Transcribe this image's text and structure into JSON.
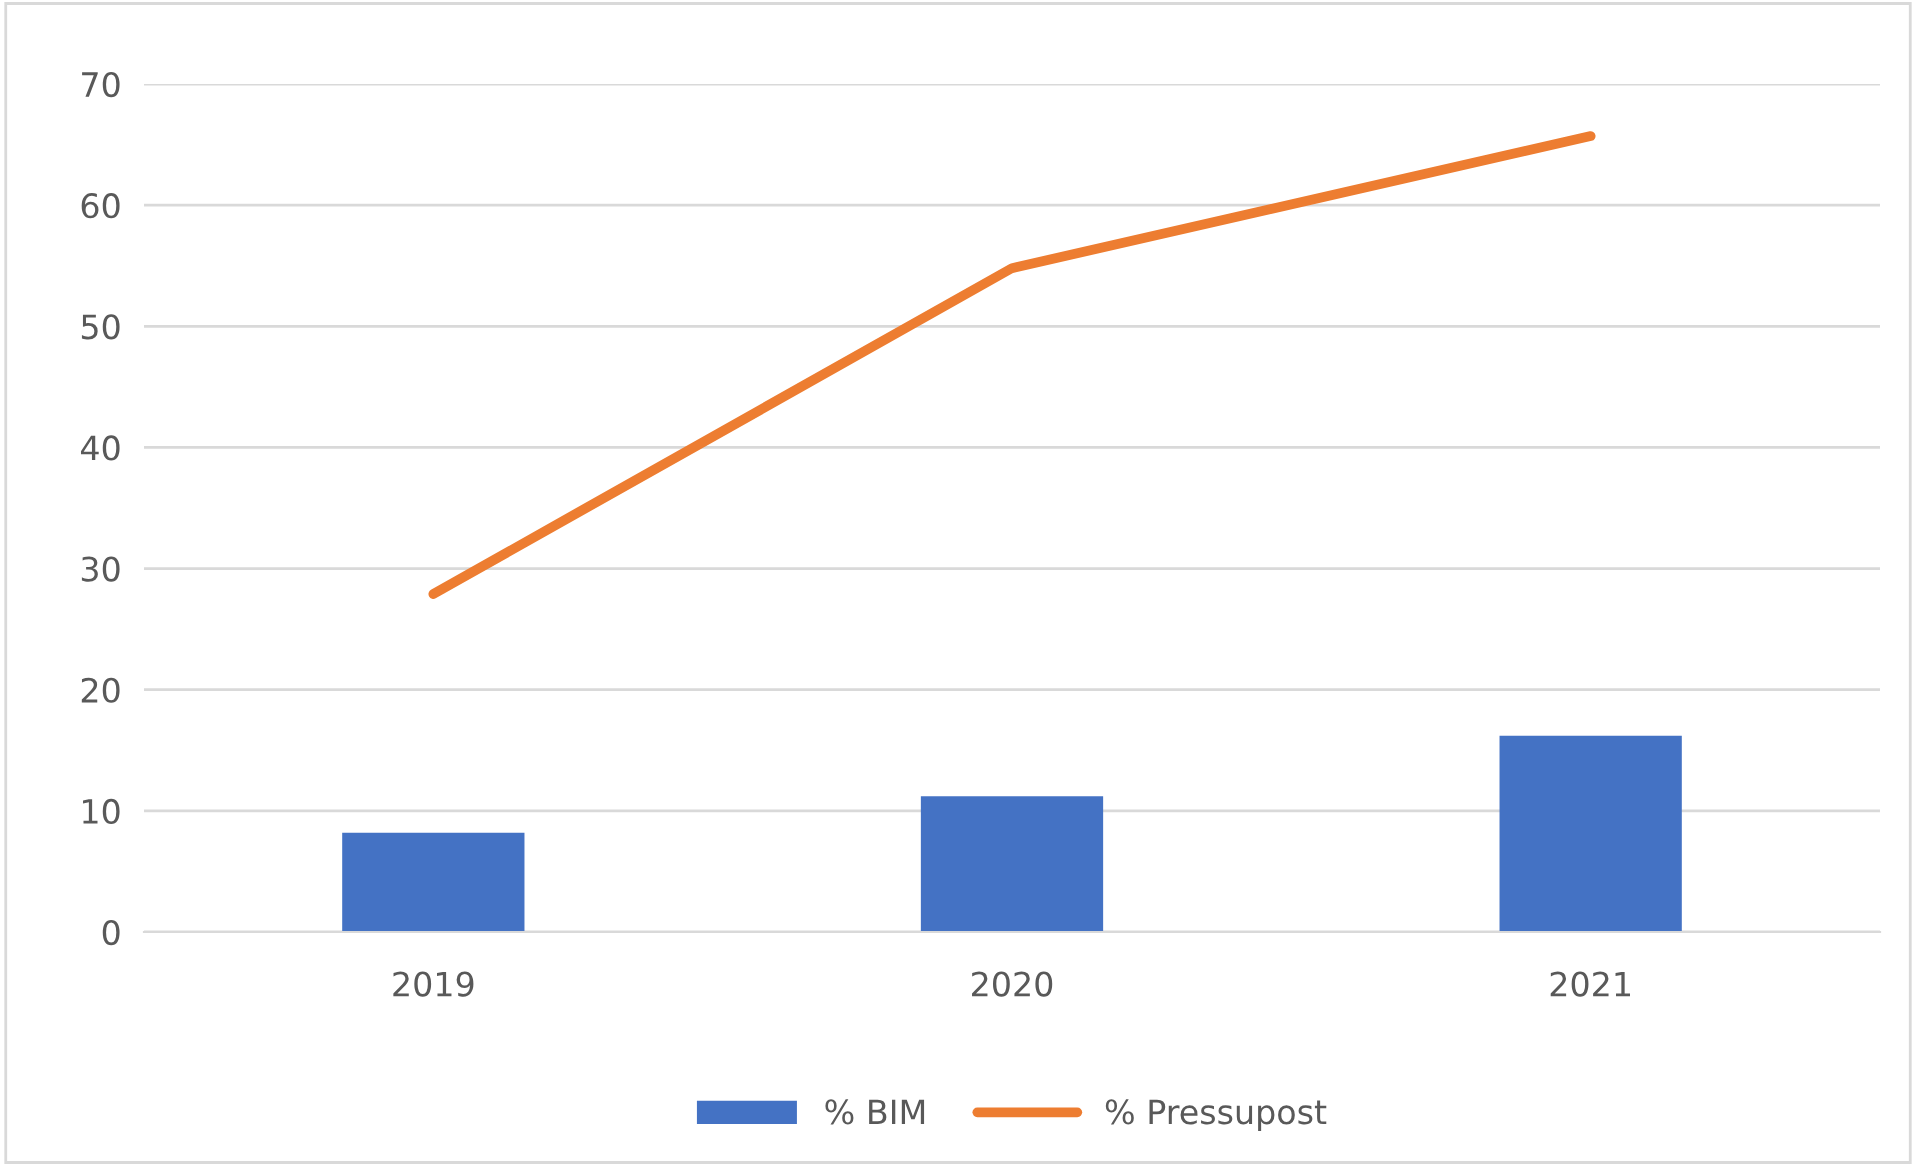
{
  "chart_data": {
    "type": "bar",
    "categories": [
      "2019",
      "2020",
      "2021"
    ],
    "series": [
      {
        "name": "% BIM",
        "color": "#4472c4",
        "values": [
          8.2,
          11.2,
          16.2
        ]
      },
      {
        "name": "% Pressupost",
        "type": "line",
        "color": "#ed7d31",
        "values": [
          27.9,
          54.8,
          65.7
        ]
      }
    ],
    "ylim": [
      0,
      70
    ],
    "yticks": [
      0,
      10,
      20,
      30,
      40,
      50,
      60,
      70
    ],
    "grid": "y",
    "legend": "bottom",
    "marker": "none",
    "line_style": "solid"
  }
}
